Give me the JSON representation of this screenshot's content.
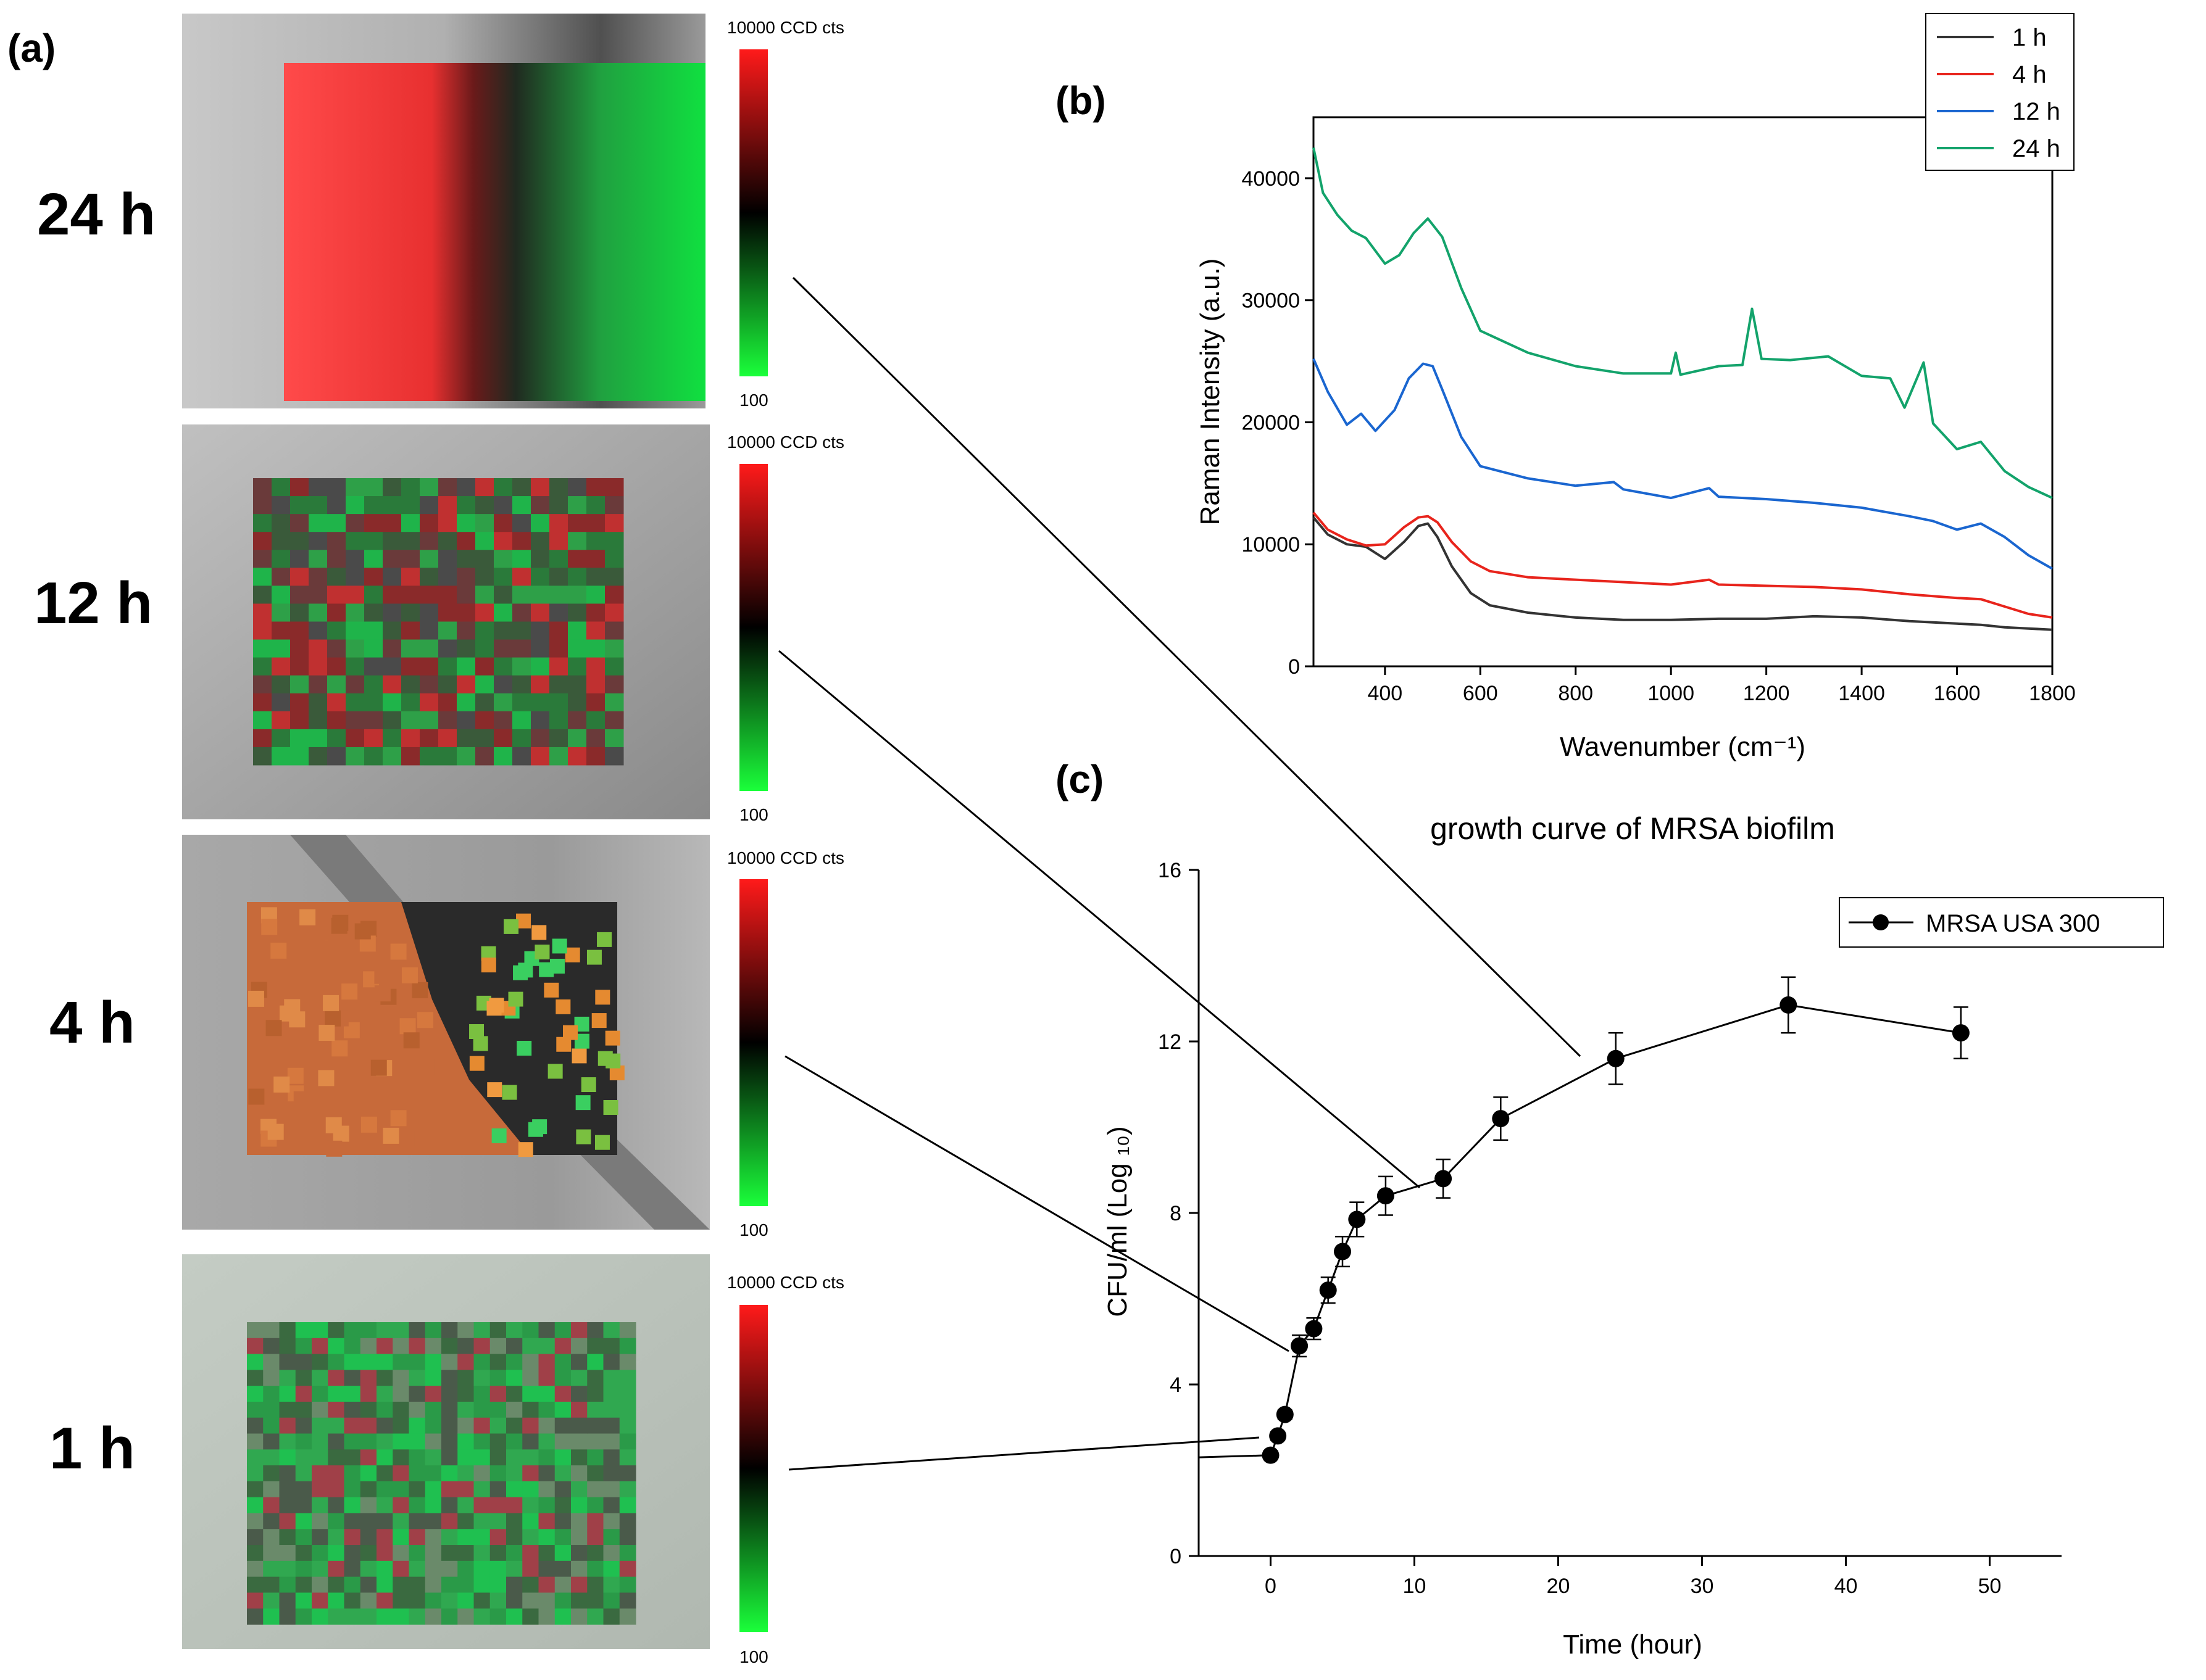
{
  "figure": {
    "panel_a_letter": "(a)",
    "panel_b_letter": "(b)",
    "panel_c_letter": "(c)"
  },
  "maps": [
    {
      "time_label": "24 h",
      "colorbar_top": "10000 CCD cts",
      "colorbar_bottom": "100"
    },
    {
      "time_label": "12 h",
      "colorbar_top": "10000 CCD cts",
      "colorbar_bottom": "100"
    },
    {
      "time_label": "4 h",
      "colorbar_top": "10000 CCD cts",
      "colorbar_bottom": "100"
    },
    {
      "time_label": "1 h",
      "colorbar_top": "10000 CCD cts",
      "colorbar_bottom": "100"
    }
  ],
  "colors": {
    "red": "#ff2020",
    "green": "#20e040",
    "series_1h": "#333333",
    "series_4h": "#e8241c",
    "series_12h": "#1a66d0",
    "series_24h": "#13a36b",
    "growth": "#000000"
  },
  "chart_data": [
    {
      "type": "line",
      "title": "",
      "xlabel": "Wavenumber (cm⁻¹)",
      "ylabel": "Raman Intensity (a.u.)",
      "xlim": [
        250,
        1800
      ],
      "ylim": [
        0,
        45000
      ],
      "xticks": [
        400,
        600,
        800,
        1000,
        1200,
        1400,
        1600,
        1800
      ],
      "yticks": [
        0,
        10000,
        20000,
        30000,
        40000
      ],
      "xtick_labels": [
        "400",
        "600",
        "800",
        "1000",
        "1200",
        "1400",
        "1600",
        "1800"
      ],
      "ytick_labels": [
        "0",
        "10000",
        "20000",
        "30000",
        "40000"
      ],
      "legend_position": "top-right",
      "series": [
        {
          "name": "1 h",
          "color": "#333333",
          "x": [
            250,
            280,
            320,
            360,
            400,
            440,
            470,
            490,
            510,
            540,
            580,
            620,
            700,
            800,
            900,
            1000,
            1100,
            1200,
            1300,
            1400,
            1500,
            1600,
            1650,
            1700,
            1750,
            1800
          ],
          "y": [
            12200,
            10800,
            10000,
            9800,
            8800,
            10200,
            11500,
            11700,
            10600,
            8200,
            6000,
            5000,
            4400,
            4000,
            3800,
            3800,
            3900,
            3900,
            4100,
            4000,
            3700,
            3500,
            3400,
            3200,
            3100,
            3000
          ]
        },
        {
          "name": "4 h",
          "color": "#e8241c",
          "x": [
            250,
            280,
            320,
            360,
            400,
            440,
            470,
            490,
            510,
            540,
            580,
            620,
            700,
            800,
            900,
            1000,
            1080,
            1100,
            1200,
            1300,
            1400,
            1500,
            1600,
            1650,
            1700,
            1750,
            1800
          ],
          "y": [
            12600,
            11200,
            10400,
            9900,
            10000,
            11400,
            12200,
            12300,
            11800,
            10200,
            8600,
            7800,
            7300,
            7100,
            6900,
            6700,
            7100,
            6700,
            6600,
            6500,
            6300,
            5900,
            5600,
            5500,
            4900,
            4300,
            4000
          ]
        },
        {
          "name": "12 h",
          "color": "#1a66d0",
          "x": [
            250,
            280,
            320,
            350,
            380,
            420,
            450,
            480,
            500,
            520,
            560,
            600,
            700,
            800,
            880,
            900,
            1000,
            1080,
            1100,
            1200,
            1300,
            1400,
            1500,
            1550,
            1600,
            1650,
            1700,
            1750,
            1800
          ],
          "y": [
            25200,
            22500,
            19800,
            20700,
            19300,
            21000,
            23600,
            24800,
            24600,
            22700,
            18800,
            16400,
            15400,
            14800,
            15100,
            14500,
            13800,
            14600,
            13900,
            13700,
            13400,
            13000,
            12300,
            11900,
            11200,
            11700,
            10600,
            9100,
            8000
          ]
        },
        {
          "name": "24 h",
          "color": "#13a36b",
          "x": [
            250,
            270,
            300,
            330,
            360,
            400,
            430,
            460,
            490,
            520,
            560,
            600,
            700,
            800,
            900,
            1000,
            1010,
            1020,
            1100,
            1150,
            1170,
            1190,
            1250,
            1330,
            1400,
            1460,
            1490,
            1530,
            1550,
            1600,
            1650,
            1700,
            1750,
            1800
          ],
          "y": [
            42500,
            38800,
            37000,
            35700,
            35100,
            33000,
            33700,
            35500,
            36700,
            35200,
            31000,
            27500,
            25700,
            24600,
            24000,
            24000,
            25700,
            23900,
            24600,
            24700,
            29300,
            25200,
            25100,
            25400,
            23800,
            23600,
            21200,
            24900,
            19900,
            17800,
            18400,
            16000,
            14700,
            13800
          ]
        }
      ]
    },
    {
      "type": "scatter",
      "title": "growth curve of MRSA biofilm",
      "xlabel": "Time (hour)",
      "ylabel": "CFU/ml (Log ₁₀)",
      "xlim": [
        -5,
        55
      ],
      "ylim": [
        0,
        16
      ],
      "xticks": [
        0,
        10,
        20,
        30,
        40,
        50
      ],
      "yticks": [
        0,
        4,
        8,
        12,
        16
      ],
      "xtick_labels": [
        "0",
        "10",
        "20",
        "30",
        "40",
        "50"
      ],
      "ytick_labels": [
        "0",
        "4",
        "8",
        "12",
        "16"
      ],
      "legend_position": "top-right",
      "baseline": {
        "x": [
          -5,
          0
        ],
        "y": [
          2.3,
          2.35
        ]
      },
      "series": [
        {
          "name": "MRSA USA 300",
          "color": "#000000",
          "x": [
            0,
            0.5,
            1,
            2,
            3,
            4,
            5,
            6,
            8,
            12,
            16,
            24,
            36,
            48
          ],
          "y": [
            2.35,
            2.8,
            3.3,
            4.9,
            5.3,
            6.2,
            7.1,
            7.85,
            8.4,
            8.8,
            10.2,
            11.6,
            12.85,
            12.2
          ],
          "error": [
            0.1,
            0.1,
            0.1,
            0.25,
            0.25,
            0.3,
            0.35,
            0.4,
            0.45,
            0.45,
            0.5,
            0.6,
            0.65,
            0.6
          ]
        }
      ]
    }
  ]
}
